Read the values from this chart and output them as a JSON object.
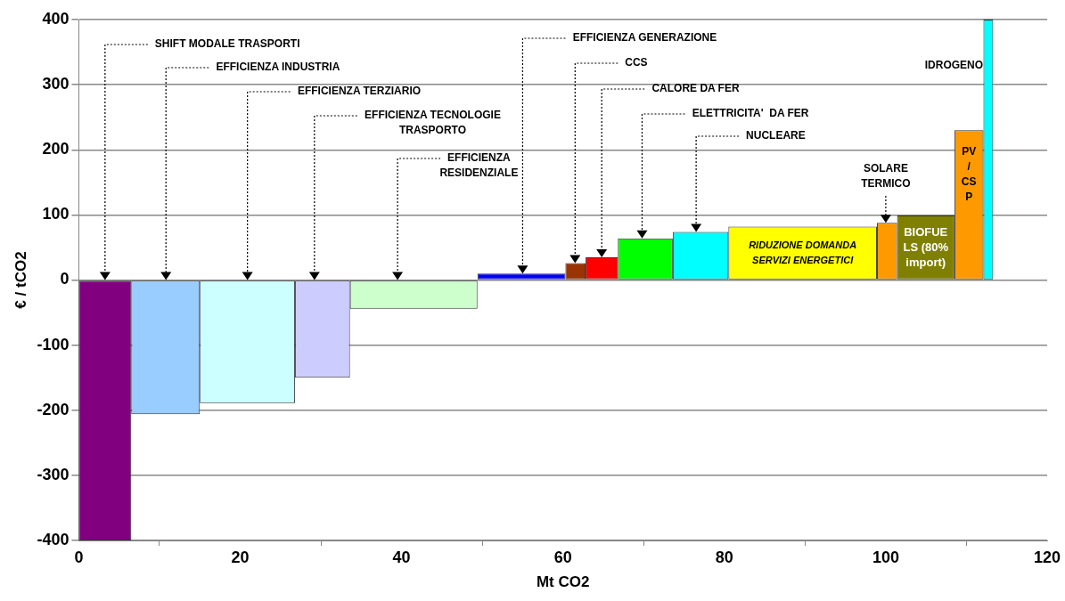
{
  "chart_data": {
    "type": "histogram",
    "bins": [
      0,
      6.5,
      15.0,
      26.8,
      33.6,
      49.4,
      60.3,
      62.8,
      66.8,
      73.6,
      80.5,
      98.9,
      101.4,
      108.5,
      112.1,
      113.3
    ],
    "values": [
      -400,
      -206,
      -189,
      -150,
      -44,
      10,
      26,
      35,
      64,
      74,
      82,
      88,
      99,
      230,
      400
    ],
    "colors": [
      "#800080",
      "#99ccff",
      "#ccffff",
      "#ccccff",
      "#ccffcc",
      "#0000ff",
      "#993300",
      "#ff0000",
      "#00ff00",
      "#00ffff",
      "#ffff00",
      "#ff9900",
      "#808000",
      "#ff9900",
      "#00ffff"
    ],
    "xlabel": "Mt CO2",
    "ylabel": "€ / tCO2",
    "xlim": [
      0,
      120
    ],
    "xticks": [
      0,
      20,
      40,
      60,
      80,
      100,
      120
    ],
    "ylim": [
      -400,
      400
    ],
    "yticks": [
      -400,
      -300,
      -200,
      -100,
      0,
      100,
      200,
      300,
      400
    ],
    "grid": "y",
    "legend": false,
    "annotations": [
      {
        "text": "SHIFT MODALE TRASPORTI",
        "x": 3.25,
        "y": 0
      },
      {
        "text": "EFFICIENZA INDUSTRIA",
        "x": 10.8,
        "y": 0
      },
      {
        "text": "EFFICIENZA TERZIARIO",
        "x": 20.9,
        "y": 0
      },
      {
        "text": "EFFICIENZA TECNOLOGIE\nTRASPORTO",
        "x": 29.2,
        "y": 0
      },
      {
        "text": "EFFICIENZA\nRESIDENZIALE",
        "x": 39.5,
        "y": 0
      },
      {
        "text": "EFFICIENZA GENERAZIONE",
        "x": 55,
        "y": 10
      },
      {
        "text": "CCS",
        "x": 61.5,
        "y": 26
      },
      {
        "text": "CALORE DA FER",
        "x": 64.8,
        "y": 35
      },
      {
        "text": "ELETTRICITA'  DA FER",
        "x": 69.8,
        "y": 64
      },
      {
        "text": "NUCLEARE",
        "x": 76.5,
        "y": 74
      },
      {
        "text": "SOLARE\nTERMICO",
        "x": 100,
        "y": 88
      },
      "RIDUZIONE DOMANDA\nSERVIZI ENERGETICI",
      "BIOFUE\nLS (80%\nimport)",
      "PV\n/\nCS\nP",
      {
        "text": "IDROGENO",
        "x": 112.5,
        "y": 330
      }
    ]
  }
}
